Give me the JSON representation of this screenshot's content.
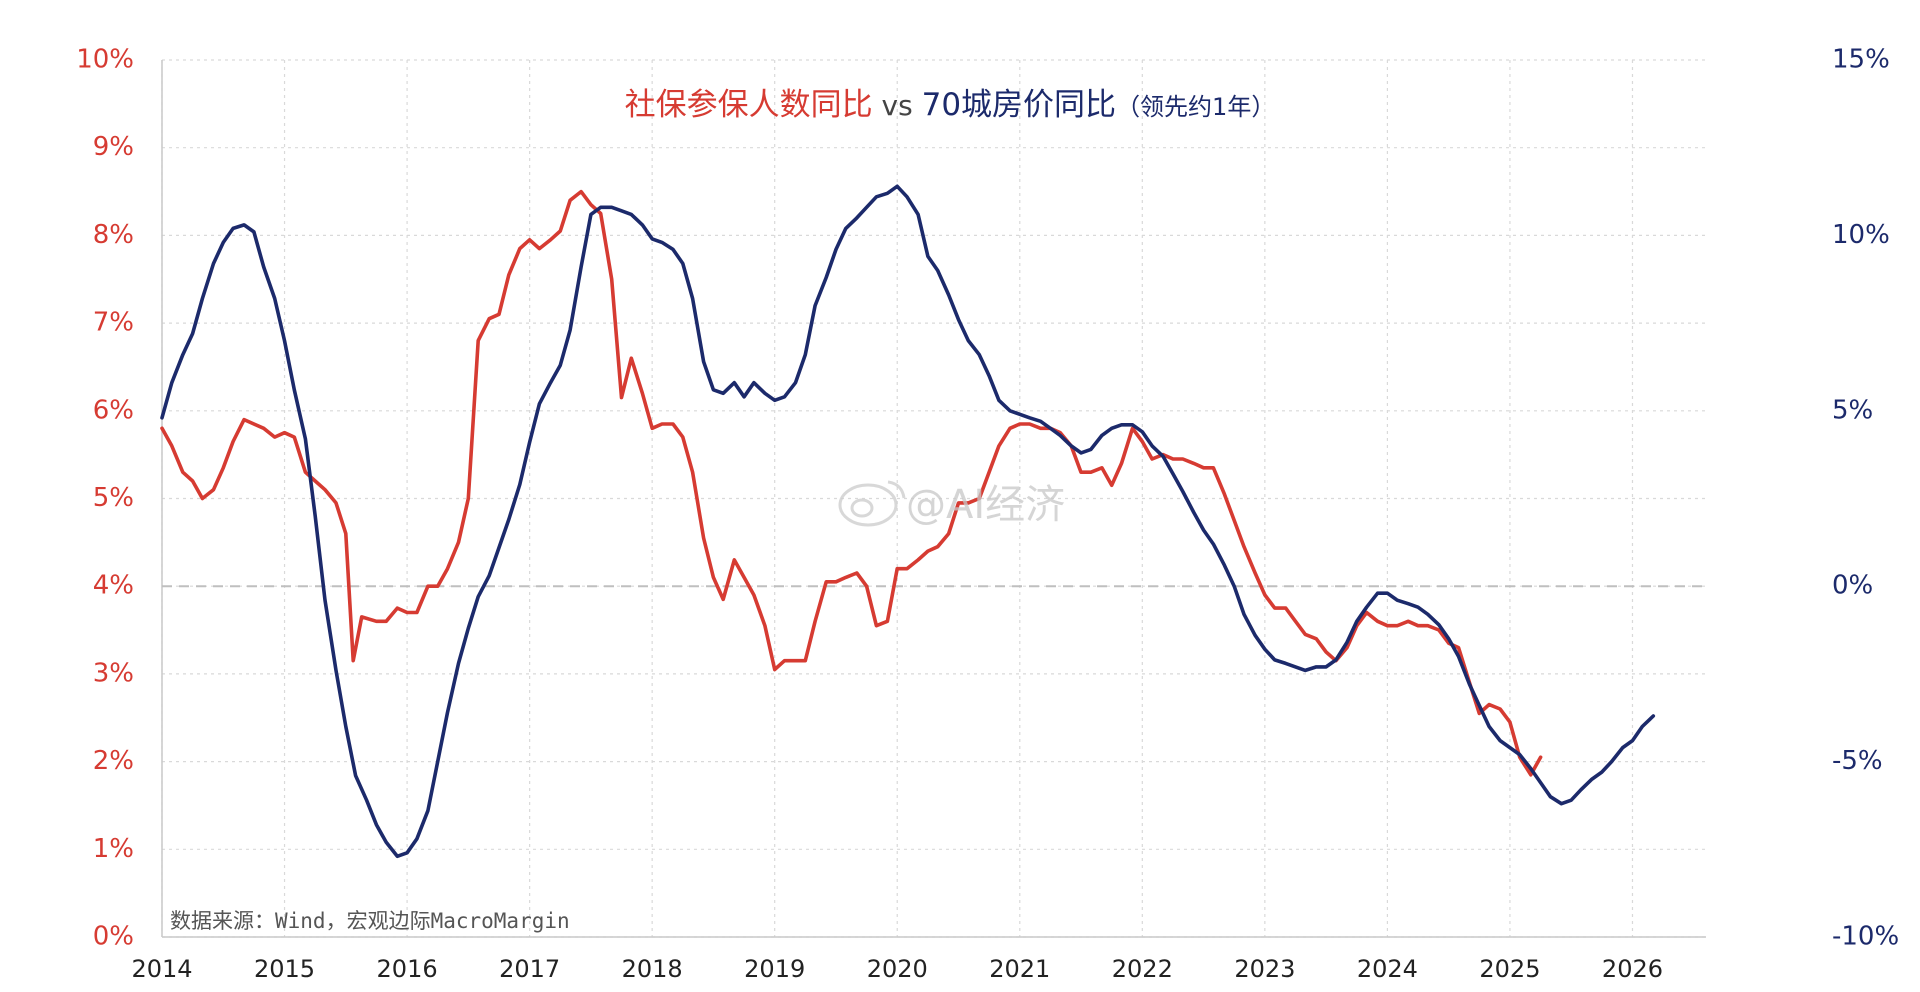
{
  "title": {
    "part1": "社保参保人数同比",
    "vs": " vs ",
    "part2": "70城房价同比",
    "note": "（领先约1年）"
  },
  "source": "数据来源：Wind，宏观边际MacroMargin",
  "watermark": "@AI经济",
  "colors": {
    "red": "#d63b32",
    "blue": "#1c2a6b",
    "grid": "#d9d9d9",
    "zero": "#bfbfbf"
  },
  "chart_data": {
    "type": "line",
    "x_range": [
      2014.0,
      2026.6
    ],
    "x_ticks": [
      "2014",
      "2015",
      "2016",
      "2017",
      "2018",
      "2019",
      "2020",
      "2021",
      "2022",
      "2023",
      "2024",
      "2025",
      "2026"
    ],
    "y_left": {
      "range": [
        0,
        10
      ],
      "ticks": [
        "0%",
        "1%",
        "2%",
        "3%",
        "4%",
        "5%",
        "6%",
        "7%",
        "8%",
        "9%",
        "10%"
      ]
    },
    "y_right": {
      "range": [
        -10,
        15
      ],
      "ticks": [
        "-10%",
        "-5%",
        "0%",
        "5%",
        "10%",
        "15%"
      ]
    },
    "zero_line_right": 0,
    "series": [
      {
        "name": "社保参保人数同比",
        "axis": "left",
        "color": "#d63b32",
        "points": [
          [
            2014.0,
            5.8
          ],
          [
            2014.08,
            5.6
          ],
          [
            2014.17,
            5.3
          ],
          [
            2014.25,
            5.2
          ],
          [
            2014.33,
            5.0
          ],
          [
            2014.42,
            5.1
          ],
          [
            2014.5,
            5.35
          ],
          [
            2014.58,
            5.65
          ],
          [
            2014.67,
            5.9
          ],
          [
            2014.75,
            5.85
          ],
          [
            2014.83,
            5.8
          ],
          [
            2014.92,
            5.7
          ],
          [
            2015.0,
            5.75
          ],
          [
            2015.08,
            5.7
          ],
          [
            2015.17,
            5.3
          ],
          [
            2015.25,
            5.2
          ],
          [
            2015.33,
            5.1
          ],
          [
            2015.42,
            4.95
          ],
          [
            2015.5,
            4.6
          ],
          [
            2015.56,
            3.15
          ],
          [
            2015.63,
            3.65
          ],
          [
            2015.75,
            3.6
          ],
          [
            2015.83,
            3.6
          ],
          [
            2015.92,
            3.75
          ],
          [
            2016.0,
            3.7
          ],
          [
            2016.08,
            3.7
          ],
          [
            2016.17,
            4.0
          ],
          [
            2016.25,
            4.0
          ],
          [
            2016.33,
            4.2
          ],
          [
            2016.42,
            4.5
          ],
          [
            2016.5,
            5.0
          ],
          [
            2016.58,
            6.8
          ],
          [
            2016.67,
            7.05
          ],
          [
            2016.75,
            7.1
          ],
          [
            2016.83,
            7.55
          ],
          [
            2016.92,
            7.85
          ],
          [
            2017.0,
            7.95
          ],
          [
            2017.08,
            7.85
          ],
          [
            2017.17,
            7.95
          ],
          [
            2017.25,
            8.05
          ],
          [
            2017.33,
            8.4
          ],
          [
            2017.42,
            8.5
          ],
          [
            2017.5,
            8.35
          ],
          [
            2017.58,
            8.25
          ],
          [
            2017.67,
            7.5
          ],
          [
            2017.75,
            6.15
          ],
          [
            2017.83,
            6.6
          ],
          [
            2017.92,
            6.2
          ],
          [
            2018.0,
            5.8
          ],
          [
            2018.08,
            5.85
          ],
          [
            2018.17,
            5.85
          ],
          [
            2018.25,
            5.7
          ],
          [
            2018.33,
            5.3
          ],
          [
            2018.42,
            4.55
          ],
          [
            2018.5,
            4.1
          ],
          [
            2018.58,
            3.85
          ],
          [
            2018.67,
            4.3
          ],
          [
            2018.75,
            4.1
          ],
          [
            2018.83,
            3.9
          ],
          [
            2018.92,
            3.55
          ],
          [
            2019.0,
            3.05
          ],
          [
            2019.08,
            3.15
          ],
          [
            2019.17,
            3.15
          ],
          [
            2019.25,
            3.15
          ],
          [
            2019.33,
            3.6
          ],
          [
            2019.42,
            4.05
          ],
          [
            2019.5,
            4.05
          ],
          [
            2019.58,
            4.1
          ],
          [
            2019.67,
            4.15
          ],
          [
            2019.75,
            4.0
          ],
          [
            2019.83,
            3.55
          ],
          [
            2019.92,
            3.6
          ],
          [
            2020.0,
            4.2
          ],
          [
            2020.08,
            4.2
          ],
          [
            2020.17,
            4.3
          ],
          [
            2020.25,
            4.4
          ],
          [
            2020.33,
            4.45
          ],
          [
            2020.42,
            4.6
          ],
          [
            2020.5,
            4.95
          ],
          [
            2020.58,
            4.95
          ],
          [
            2020.67,
            5.0
          ],
          [
            2020.75,
            5.3
          ],
          [
            2020.83,
            5.6
          ],
          [
            2020.92,
            5.8
          ],
          [
            2021.0,
            5.85
          ],
          [
            2021.08,
            5.85
          ],
          [
            2021.17,
            5.8
          ],
          [
            2021.25,
            5.8
          ],
          [
            2021.33,
            5.75
          ],
          [
            2021.42,
            5.6
          ],
          [
            2021.5,
            5.3
          ],
          [
            2021.58,
            5.3
          ],
          [
            2021.67,
            5.35
          ],
          [
            2021.75,
            5.15
          ],
          [
            2021.83,
            5.4
          ],
          [
            2021.92,
            5.8
          ],
          [
            2022.0,
            5.65
          ],
          [
            2022.08,
            5.45
          ],
          [
            2022.17,
            5.5
          ],
          [
            2022.25,
            5.45
          ],
          [
            2022.33,
            5.45
          ],
          [
            2022.42,
            5.4
          ],
          [
            2022.5,
            5.35
          ],
          [
            2022.58,
            5.35
          ],
          [
            2022.67,
            5.05
          ],
          [
            2022.75,
            4.75
          ],
          [
            2022.83,
            4.45
          ],
          [
            2022.92,
            4.15
          ],
          [
            2023.0,
            3.9
          ],
          [
            2023.08,
            3.75
          ],
          [
            2023.17,
            3.75
          ],
          [
            2023.25,
            3.6
          ],
          [
            2023.33,
            3.45
          ],
          [
            2023.42,
            3.4
          ],
          [
            2023.5,
            3.25
          ],
          [
            2023.58,
            3.15
          ],
          [
            2023.67,
            3.3
          ],
          [
            2023.75,
            3.55
          ],
          [
            2023.83,
            3.7
          ],
          [
            2023.92,
            3.6
          ],
          [
            2024.0,
            3.55
          ],
          [
            2024.08,
            3.55
          ],
          [
            2024.17,
            3.6
          ],
          [
            2024.25,
            3.55
          ],
          [
            2024.33,
            3.55
          ],
          [
            2024.42,
            3.5
          ],
          [
            2024.5,
            3.35
          ],
          [
            2024.58,
            3.3
          ],
          [
            2024.67,
            2.9
          ],
          [
            2024.75,
            2.55
          ],
          [
            2024.83,
            2.65
          ],
          [
            2024.92,
            2.6
          ],
          [
            2025.0,
            2.45
          ],
          [
            2025.08,
            2.05
          ],
          [
            2025.17,
            1.85
          ],
          [
            2025.25,
            2.05
          ]
        ]
      },
      {
        "name": "70城房价同比",
        "axis": "right",
        "color": "#1c2a6b",
        "points": [
          [
            2014.0,
            4.8
          ],
          [
            2014.08,
            5.8
          ],
          [
            2014.17,
            6.6
          ],
          [
            2014.25,
            7.2
          ],
          [
            2014.33,
            8.2
          ],
          [
            2014.42,
            9.2
          ],
          [
            2014.5,
            9.8
          ],
          [
            2014.58,
            10.2
          ],
          [
            2014.67,
            10.3
          ],
          [
            2014.75,
            10.1
          ],
          [
            2014.83,
            9.1
          ],
          [
            2014.92,
            8.2
          ],
          [
            2015.0,
            7.0
          ],
          [
            2015.08,
            5.6
          ],
          [
            2015.17,
            4.2
          ],
          [
            2015.25,
            2.0
          ],
          [
            2015.33,
            -0.4
          ],
          [
            2015.42,
            -2.4
          ],
          [
            2015.5,
            -4.0
          ],
          [
            2015.58,
            -5.4
          ],
          [
            2015.67,
            -6.1
          ],
          [
            2015.75,
            -6.8
          ],
          [
            2015.83,
            -7.3
          ],
          [
            2015.92,
            -7.7
          ],
          [
            2016.0,
            -7.6
          ],
          [
            2016.08,
            -7.2
          ],
          [
            2016.17,
            -6.4
          ],
          [
            2016.25,
            -5.0
          ],
          [
            2016.33,
            -3.6
          ],
          [
            2016.42,
            -2.2
          ],
          [
            2016.5,
            -1.2
          ],
          [
            2016.58,
            -0.3
          ],
          [
            2016.67,
            0.3
          ],
          [
            2016.75,
            1.1
          ],
          [
            2016.83,
            1.9
          ],
          [
            2016.92,
            2.9
          ],
          [
            2017.0,
            4.1
          ],
          [
            2017.08,
            5.2
          ],
          [
            2017.17,
            5.8
          ],
          [
            2017.25,
            6.3
          ],
          [
            2017.33,
            7.3
          ],
          [
            2017.42,
            9.1
          ],
          [
            2017.5,
            10.6
          ],
          [
            2017.58,
            10.8
          ],
          [
            2017.67,
            10.8
          ],
          [
            2017.75,
            10.7
          ],
          [
            2017.83,
            10.6
          ],
          [
            2017.92,
            10.3
          ],
          [
            2018.0,
            9.9
          ],
          [
            2018.08,
            9.8
          ],
          [
            2018.17,
            9.6
          ],
          [
            2018.25,
            9.2
          ],
          [
            2018.33,
            8.2
          ],
          [
            2018.42,
            6.4
          ],
          [
            2018.5,
            5.6
          ],
          [
            2018.58,
            5.5
          ],
          [
            2018.67,
            5.8
          ],
          [
            2018.75,
            5.4
          ],
          [
            2018.83,
            5.8
          ],
          [
            2018.92,
            5.5
          ],
          [
            2019.0,
            5.3
          ],
          [
            2019.08,
            5.4
          ],
          [
            2019.17,
            5.8
          ],
          [
            2019.25,
            6.6
          ],
          [
            2019.33,
            8.0
          ],
          [
            2019.42,
            8.8
          ],
          [
            2019.5,
            9.6
          ],
          [
            2019.58,
            10.2
          ],
          [
            2019.67,
            10.5
          ],
          [
            2019.75,
            10.8
          ],
          [
            2019.83,
            11.1
          ],
          [
            2019.92,
            11.2
          ],
          [
            2020.0,
            11.4
          ],
          [
            2020.08,
            11.1
          ],
          [
            2020.17,
            10.6
          ],
          [
            2020.25,
            9.4
          ],
          [
            2020.33,
            9.0
          ],
          [
            2020.42,
            8.3
          ],
          [
            2020.5,
            7.6
          ],
          [
            2020.58,
            7.0
          ],
          [
            2020.67,
            6.6
          ],
          [
            2020.75,
            6.0
          ],
          [
            2020.83,
            5.3
          ],
          [
            2020.92,
            5.0
          ],
          [
            2021.0,
            4.9
          ],
          [
            2021.08,
            4.8
          ],
          [
            2021.17,
            4.7
          ],
          [
            2021.25,
            4.5
          ],
          [
            2021.33,
            4.3
          ],
          [
            2021.42,
            4.0
          ],
          [
            2021.5,
            3.8
          ],
          [
            2021.58,
            3.9
          ],
          [
            2021.67,
            4.3
          ],
          [
            2021.75,
            4.5
          ],
          [
            2021.83,
            4.6
          ],
          [
            2021.92,
            4.6
          ],
          [
            2022.0,
            4.4
          ],
          [
            2022.08,
            4.0
          ],
          [
            2022.17,
            3.7
          ],
          [
            2022.25,
            3.2
          ],
          [
            2022.33,
            2.7
          ],
          [
            2022.42,
            2.1
          ],
          [
            2022.5,
            1.6
          ],
          [
            2022.58,
            1.2
          ],
          [
            2022.67,
            0.6
          ],
          [
            2022.75,
            0.0
          ],
          [
            2022.83,
            -0.8
          ],
          [
            2022.92,
            -1.4
          ],
          [
            2023.0,
            -1.8
          ],
          [
            2023.08,
            -2.1
          ],
          [
            2023.17,
            -2.2
          ],
          [
            2023.25,
            -2.3
          ],
          [
            2023.33,
            -2.4
          ],
          [
            2023.42,
            -2.3
          ],
          [
            2023.5,
            -2.3
          ],
          [
            2023.58,
            -2.1
          ],
          [
            2023.67,
            -1.6
          ],
          [
            2023.75,
            -1.0
          ],
          [
            2023.83,
            -0.6
          ],
          [
            2023.92,
            -0.2
          ],
          [
            2024.0,
            -0.2
          ],
          [
            2024.08,
            -0.4
          ],
          [
            2024.17,
            -0.5
          ],
          [
            2024.25,
            -0.6
          ],
          [
            2024.33,
            -0.8
          ],
          [
            2024.42,
            -1.1
          ],
          [
            2024.5,
            -1.5
          ],
          [
            2024.58,
            -2.0
          ],
          [
            2024.67,
            -2.8
          ],
          [
            2024.75,
            -3.4
          ],
          [
            2024.83,
            -4.0
          ],
          [
            2024.92,
            -4.4
          ],
          [
            2025.0,
            -4.6
          ],
          [
            2025.08,
            -4.8
          ],
          [
            2025.17,
            -5.2
          ],
          [
            2025.25,
            -5.6
          ],
          [
            2025.33,
            -6.0
          ],
          [
            2025.42,
            -6.2
          ],
          [
            2025.5,
            -6.1
          ],
          [
            2025.58,
            -5.8
          ],
          [
            2025.67,
            -5.5
          ],
          [
            2025.75,
            -5.3
          ],
          [
            2025.83,
            -5.0
          ],
          [
            2025.92,
            -4.6
          ],
          [
            2026.0,
            -4.4
          ],
          [
            2026.08,
            -4.0
          ],
          [
            2026.17,
            -3.7
          ]
        ]
      }
    ]
  }
}
